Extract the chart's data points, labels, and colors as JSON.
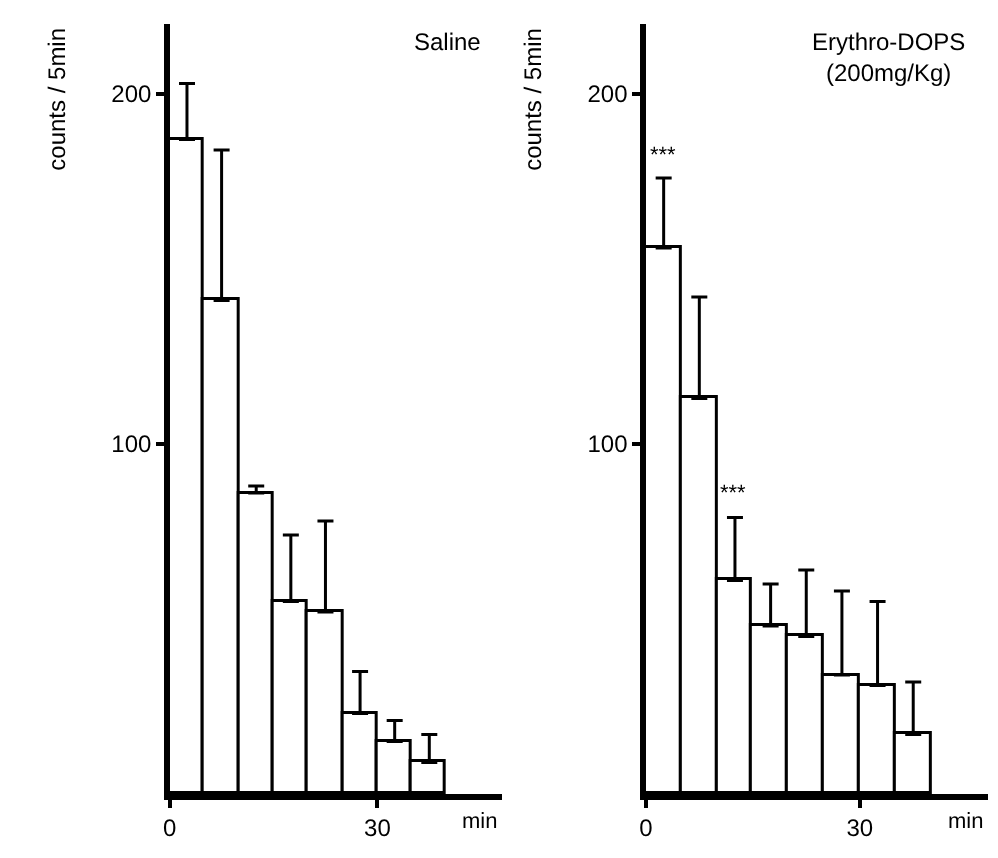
{
  "chart_data": [
    {
      "type": "bar",
      "title": "Saline",
      "xlabel": "min",
      "ylabel": "counts / 5min",
      "x": [
        2.5,
        7.5,
        12.5,
        17.5,
        22.5,
        27.5,
        32.5,
        37.5
      ],
      "values": [
        187,
        141,
        86,
        55,
        52,
        23,
        15,
        9
      ],
      "errors": [
        [
          187,
          203
        ],
        [
          141,
          184
        ],
        [
          86,
          88
        ],
        [
          55,
          74
        ],
        [
          52,
          78
        ],
        [
          23,
          35
        ],
        [
          15,
          21
        ],
        [
          9,
          17
        ]
      ],
      "color": "#ffffff",
      "xlim": [
        0,
        48
      ],
      "ylim": [
        0,
        220
      ],
      "xticks": [
        0,
        30
      ],
      "yticks": [
        100,
        200
      ]
    },
    {
      "type": "bar",
      "title": "Erythro-DOPS\n(200mg/Kg)",
      "xlabel": "min",
      "ylabel": "counts / 5min",
      "x": [
        2.5,
        7.5,
        12.5,
        17.5,
        22.5,
        27.5,
        32.5,
        37.5
      ],
      "values": [
        156,
        113,
        61,
        48,
        45,
        34,
        31,
        17
      ],
      "errors": [
        [
          156,
          176
        ],
        [
          113,
          142
        ],
        [
          61,
          79
        ],
        [
          48,
          60
        ],
        [
          45,
          64
        ],
        [
          34,
          58
        ],
        [
          31,
          55
        ],
        [
          17,
          32
        ]
      ],
      "color": "#ffffff",
      "xlim": [
        0,
        48
      ],
      "ylim": [
        0,
        220
      ],
      "xticks": [
        0,
        30
      ],
      "yticks": [
        100,
        200
      ],
      "annotations": [
        {
          "text": "***",
          "x": 2.5,
          "y": 178
        },
        {
          "text": "***",
          "x": 12.5,
          "y": 81
        }
      ]
    }
  ]
}
